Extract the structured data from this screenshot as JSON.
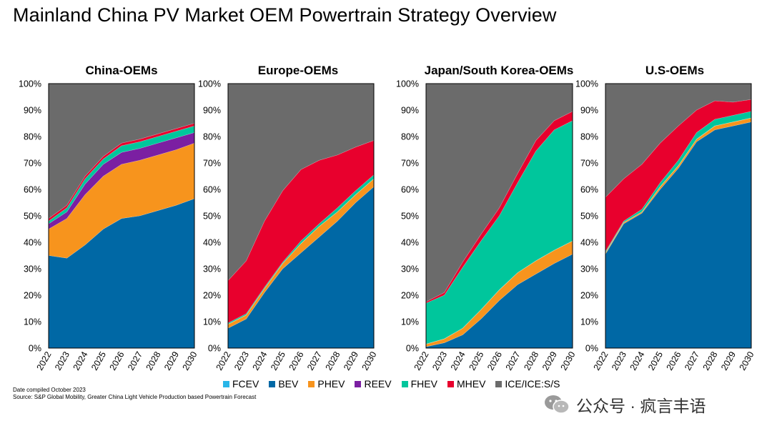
{
  "title": "Mainland China PV Market OEM Powertrain Strategy Overview",
  "footnote": {
    "compiled": "Date compiled October 2023",
    "source": "Source: S&P Global Mobility, Greater China Light Vehicle Production based Powertrain Forecast"
  },
  "watermark": {
    "text": "公众号 · 疯言丰语"
  },
  "legend": [
    {
      "key": "FCEV",
      "label": "FCEV",
      "color": "#29b6e8"
    },
    {
      "key": "BEV",
      "label": "BEV",
      "color": "#0068a5"
    },
    {
      "key": "PHEV",
      "label": "PHEV",
      "color": "#f7941d"
    },
    {
      "key": "REEV",
      "label": "REEV",
      "color": "#7b1fa2"
    },
    {
      "key": "FHEV",
      "label": "FHEV",
      "color": "#00c69c"
    },
    {
      "key": "MHEV",
      "label": "MHEV",
      "color": "#e8002d"
    },
    {
      "key": "ICE",
      "label": "ICE/ICE:S/S",
      "color": "#6b6b6b"
    }
  ],
  "chart_data": [
    {
      "type": "area",
      "stacked": true,
      "title": "China-OEMs",
      "categories": [
        "2022",
        "2023",
        "2024",
        "2025",
        "2026",
        "2027",
        "2028",
        "2029",
        "2030"
      ],
      "ylim": [
        0,
        100
      ],
      "yticks": [
        "0%",
        "10%",
        "20%",
        "30%",
        "40%",
        "50%",
        "60%",
        "70%",
        "80%",
        "90%",
        "100%"
      ],
      "series": [
        {
          "name": "FCEV",
          "values": [
            0,
            0,
            0,
            0,
            0,
            0,
            0,
            0,
            0
          ]
        },
        {
          "name": "BEV",
          "values": [
            35,
            34,
            39,
            45,
            49,
            50,
            52,
            54,
            56.5
          ]
        },
        {
          "name": "PHEV",
          "values": [
            10,
            15,
            19,
            20,
            20.5,
            21,
            21,
            21,
            21
          ]
        },
        {
          "name": "REEV",
          "values": [
            2,
            2.5,
            4,
            4.5,
            4.5,
            4.5,
            4.5,
            4.5,
            4
          ]
        },
        {
          "name": "FHEV",
          "values": [
            1,
            1.5,
            2,
            2,
            2.5,
            2.5,
            2.5,
            2.5,
            2.5
          ]
        },
        {
          "name": "MHEV",
          "values": [
            1,
            1,
            1,
            1,
            1,
            1,
            1,
            1,
            1
          ]
        },
        {
          "name": "ICE/ICE:S/S",
          "values": [
            51,
            46,
            35,
            27.5,
            22.5,
            21,
            19,
            17,
            15
          ]
        }
      ]
    },
    {
      "type": "area",
      "stacked": true,
      "title": "Europe-OEMs",
      "categories": [
        "2022",
        "2023",
        "2024",
        "2025",
        "2026",
        "2027",
        "2028",
        "2029",
        "2030"
      ],
      "ylim": [
        0,
        100
      ],
      "yticks": [
        "0%",
        "10%",
        "20%",
        "30%",
        "40%",
        "50%",
        "60%",
        "70%",
        "80%",
        "90%",
        "100%"
      ],
      "series": [
        {
          "name": "FCEV",
          "values": [
            0,
            0,
            0,
            0,
            0,
            0,
            0,
            0,
            0
          ]
        },
        {
          "name": "BEV",
          "values": [
            7.5,
            11,
            21,
            30,
            36,
            42,
            48,
            55,
            61
          ]
        },
        {
          "name": "PHEV",
          "values": [
            1.5,
            1.5,
            1.5,
            2,
            3.5,
            4,
            3.5,
            3,
            3
          ]
        },
        {
          "name": "REEV",
          "values": [
            0,
            0,
            0,
            0,
            0,
            0,
            0,
            0,
            0
          ]
        },
        {
          "name": "FHEV",
          "values": [
            0.5,
            0.5,
            0.5,
            0.5,
            1,
            1,
            1.5,
            1.5,
            1.5
          ]
        },
        {
          "name": "MHEV",
          "values": [
            16,
            20,
            25,
            27,
            27,
            24,
            20,
            16.5,
            13
          ]
        },
        {
          "name": "ICE/ICE:S/S",
          "values": [
            74.5,
            67,
            52,
            40.5,
            32.5,
            29,
            27,
            24,
            21.5
          ]
        }
      ]
    },
    {
      "type": "area",
      "stacked": true,
      "title": "Japan/South Korea-OEMs",
      "categories": [
        "2022",
        "2023",
        "2024",
        "2025",
        "2026",
        "2027",
        "2028",
        "2029",
        "2030"
      ],
      "ylim": [
        0,
        100
      ],
      "yticks": [
        "0%",
        "10%",
        "20%",
        "30%",
        "40%",
        "50%",
        "60%",
        "70%",
        "80%",
        "90%",
        "100%"
      ],
      "series": [
        {
          "name": "FCEV",
          "values": [
            0,
            0,
            0,
            0,
            0,
            0,
            0,
            0,
            0
          ]
        },
        {
          "name": "BEV",
          "values": [
            0.5,
            2,
            5,
            11,
            18,
            24,
            28,
            32,
            35.5
          ]
        },
        {
          "name": "PHEV",
          "values": [
            1,
            1.5,
            2.5,
            3.5,
            4,
            4.5,
            5,
            5,
            5
          ]
        },
        {
          "name": "REEV",
          "values": [
            0,
            0,
            0,
            0,
            0,
            0,
            0,
            0,
            0
          ]
        },
        {
          "name": "FHEV",
          "values": [
            15.5,
            16.5,
            23,
            26,
            28,
            34,
            41.5,
            45.5,
            45.5
          ]
        },
        {
          "name": "MHEV",
          "values": [
            0.5,
            1,
            2,
            2.5,
            3,
            3.5,
            4,
            3.5,
            3.5
          ]
        },
        {
          "name": "ICE/ICE:S/S",
          "values": [
            82.5,
            79,
            67.5,
            57,
            47,
            34,
            21.5,
            14,
            10.5
          ]
        }
      ]
    },
    {
      "type": "area",
      "stacked": true,
      "title": "U.S-OEMs",
      "categories": [
        "2022",
        "2023",
        "2024",
        "2025",
        "2026",
        "2027",
        "2028",
        "2029",
        "2030"
      ],
      "ylim": [
        0,
        100
      ],
      "yticks": [
        "0%",
        "10%",
        "20%",
        "30%",
        "40%",
        "50%",
        "60%",
        "70%",
        "80%",
        "90%",
        "100%"
      ],
      "series": [
        {
          "name": "FCEV",
          "values": [
            0,
            0,
            0,
            0,
            0,
            0,
            0,
            0,
            0
          ]
        },
        {
          "name": "BEV",
          "values": [
            35.5,
            47,
            51,
            60,
            68,
            78,
            82.5,
            84,
            85.5
          ]
        },
        {
          "name": "PHEV",
          "values": [
            0.5,
            0.5,
            0.5,
            1,
            1,
            1,
            1.5,
            1.5,
            1.5
          ]
        },
        {
          "name": "REEV",
          "values": [
            0,
            0,
            0,
            0,
            0,
            0,
            0,
            0,
            0
          ]
        },
        {
          "name": "FHEV",
          "values": [
            0.5,
            0.5,
            1,
            1.5,
            2,
            2.5,
            2.5,
            2.5,
            2.5
          ]
        },
        {
          "name": "MHEV",
          "values": [
            20.5,
            16,
            17,
            15,
            13,
            8.5,
            7,
            5,
            4.5
          ]
        },
        {
          "name": "ICE/ICE:S/S",
          "values": [
            43,
            36,
            30.5,
            22.5,
            16,
            10,
            6.5,
            7,
            6
          ]
        }
      ]
    }
  ]
}
